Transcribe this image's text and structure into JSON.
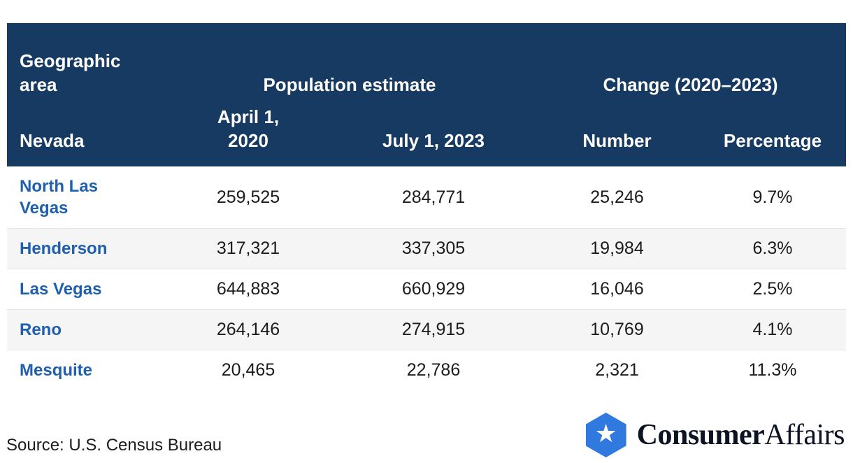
{
  "chart_data": {
    "type": "table",
    "header": {
      "geo_area_label": "Geographic area",
      "geo_area_value": "Nevada",
      "population_group": "Population estimate",
      "change_group": "Change (2020–2023)",
      "col_april": "April 1, 2020",
      "col_july": "July 1, 2023",
      "col_number": "Number",
      "col_percentage": "Percentage"
    },
    "rows": [
      {
        "city": "North Las Vegas",
        "april_2020": "259,525",
        "july_2023": "284,771",
        "change_number": "25,246",
        "change_percentage": "9.7%"
      },
      {
        "city": "Henderson",
        "april_2020": "317,321",
        "july_2023": "337,305",
        "change_number": "19,984",
        "change_percentage": "6.3%"
      },
      {
        "city": "Las Vegas",
        "april_2020": "644,883",
        "july_2023": "660,929",
        "change_number": "16,046",
        "change_percentage": "2.5%"
      },
      {
        "city": "Reno",
        "april_2020": "264,146",
        "july_2023": "274,915",
        "change_number": "10,769",
        "change_percentage": "4.1%"
      },
      {
        "city": "Mesquite",
        "april_2020": "20,465",
        "july_2023": "22,786",
        "change_number": "2,321",
        "change_percentage": "11.3%"
      }
    ]
  },
  "footer": {
    "source": "Source: U.S. Census Bureau",
    "brand_bold": "Consumer",
    "brand_regular": "Affairs",
    "star_icon": "star-in-hexagon"
  },
  "colors": {
    "header_navy": "#173a63",
    "city_link_blue": "#1f5fad",
    "row_stripe_gray": "#f5f5f6",
    "logo_hexagon_blue": "#3079df",
    "logo_text": "#0c1322"
  }
}
